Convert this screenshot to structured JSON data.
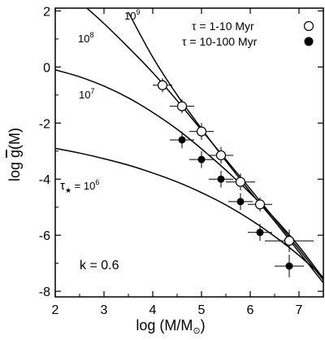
{
  "chart_data": {
    "type": "scatter",
    "title": "",
    "xlabel": "log (M/M",
    "xlabel_sub": "⊙",
    "xlabel_close": ")",
    "ylabel_pre": "log ",
    "ylabel_g": "g",
    "ylabel_post": "(M)",
    "xlim": [
      2,
      7.5
    ],
    "ylim": [
      -8.2,
      2.1
    ],
    "x_ticks": [
      2,
      3,
      4,
      5,
      6,
      7
    ],
    "y_ticks": [
      2,
      0,
      -2,
      -4,
      -6,
      -8
    ],
    "x_tick_labels": [
      "2",
      "3",
      "4",
      "5",
      "6",
      "7"
    ],
    "y_tick_labels": [
      "2",
      "0",
      "-2",
      "-4",
      "-6",
      "-8"
    ],
    "grid": false,
    "legend_position": "top-right",
    "annotation_k": "k = 0.6",
    "series": [
      {
        "name": "τ = 1-10 Myr",
        "marker": "open-circle",
        "points": [
          {
            "x": 4.2,
            "y": -0.65,
            "xerr": 0.2,
            "yerr": 0.25
          },
          {
            "x": 4.6,
            "y": -1.4,
            "xerr": 0.25,
            "yerr": 0.25
          },
          {
            "x": 5.0,
            "y": -2.3,
            "xerr": 0.25,
            "yerr": 0.3
          },
          {
            "x": 5.4,
            "y": -3.15,
            "xerr": 0.25,
            "yerr": 0.3
          },
          {
            "x": 5.8,
            "y": -4.1,
            "xerr": 0.3,
            "yerr": 0.3
          },
          {
            "x": 6.2,
            "y": -4.9,
            "xerr": 0.25,
            "yerr": 0.25
          },
          {
            "x": 6.8,
            "y": -6.2,
            "xerr": 0.5,
            "yerr": 0.4
          }
        ]
      },
      {
        "name": "τ = 10-100 Myr",
        "marker": "filled-circle",
        "points": [
          {
            "x": 4.6,
            "y": -2.6,
            "xerr": 0.25,
            "yerr": 0.3
          },
          {
            "x": 5.0,
            "y": -3.3,
            "xerr": 0.25,
            "yerr": 0.3
          },
          {
            "x": 5.4,
            "y": -4.0,
            "xerr": 0.25,
            "yerr": 0.3
          },
          {
            "x": 5.8,
            "y": -4.8,
            "xerr": 0.25,
            "yerr": 0.3
          },
          {
            "x": 6.2,
            "y": -5.9,
            "xerr": 0.25,
            "yerr": 0.3
          },
          {
            "x": 6.8,
            "y": -7.1,
            "xerr": 0.3,
            "yerr": 0.4
          }
        ]
      }
    ],
    "model_curves": [
      {
        "label": "10",
        "label_exp": "6",
        "label_prefix": "τ",
        "label_prefix_sub": "★",
        "label_prefix_eq": " = ",
        "x": [
          2.0,
          2.5,
          3.0,
          3.5,
          4.0,
          4.5,
          5.0,
          5.5,
          6.0,
          6.5,
          7.0,
          7.5
        ],
        "y": [
          -2.9,
          -3.07,
          -3.27,
          -3.5,
          -3.78,
          -4.1,
          -4.48,
          -4.92,
          -5.44,
          -6.04,
          -6.72,
          -7.5
        ]
      },
      {
        "label": "10",
        "label_exp": "7",
        "x": [
          2.0,
          2.5,
          3.0,
          3.5,
          4.0,
          4.5,
          5.0,
          5.5,
          6.0,
          6.5,
          7.0,
          7.5
        ],
        "y": [
          -0.1,
          -0.35,
          -0.68,
          -1.1,
          -1.62,
          -2.22,
          -2.92,
          -3.68,
          -4.5,
          -5.4,
          -6.4,
          -7.55
        ]
      },
      {
        "label": "10",
        "label_exp": "8",
        "x": [
          2.65,
          3.0,
          3.5,
          4.0,
          4.5,
          5.0,
          5.5,
          6.0,
          6.5,
          7.0,
          7.5
        ],
        "y": [
          2.1,
          1.55,
          0.7,
          -0.2,
          -1.2,
          -2.25,
          -3.3,
          -4.35,
          -5.42,
          -6.5,
          -7.6
        ]
      },
      {
        "label": "10",
        "label_exp": "9",
        "x": [
          3.5,
          4.0,
          4.5,
          5.0,
          5.5,
          6.0,
          6.5,
          7.0,
          7.5
        ],
        "y": [
          1.95,
          0.35,
          -1.0,
          -2.2,
          -3.35,
          -4.45,
          -5.5,
          -6.6,
          -7.7
        ]
      }
    ]
  }
}
